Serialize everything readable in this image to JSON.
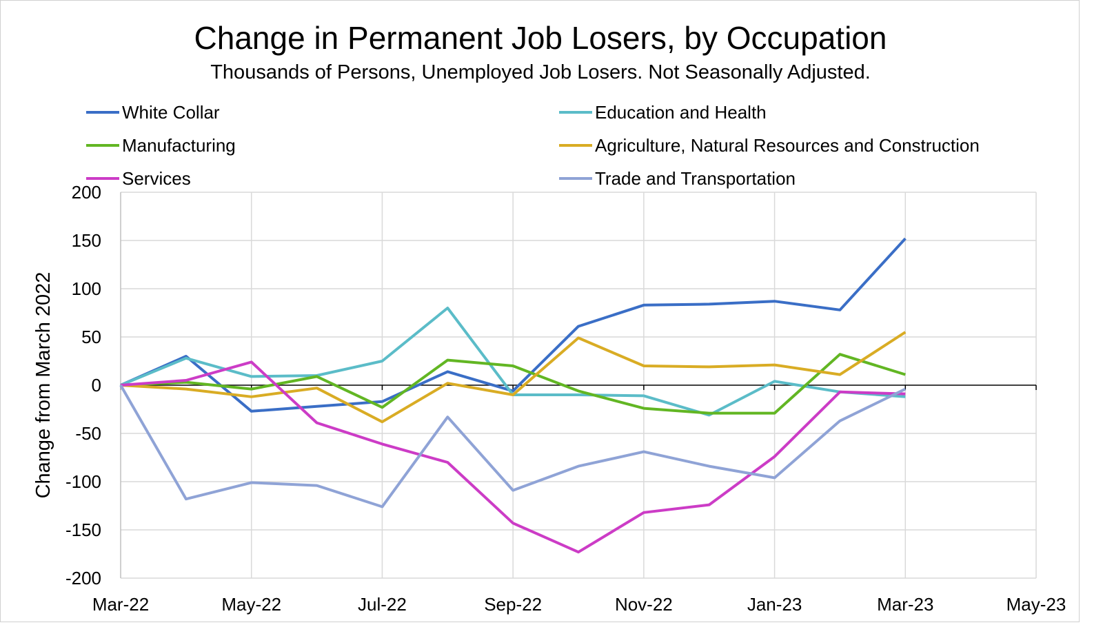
{
  "chart_data": {
    "type": "line",
    "title": "Change in Permanent Job Losers, by Occupation",
    "subtitle": "Thousands of Persons, Unemployed Job Losers. Not Seasonally Adjusted.",
    "xlabel": "",
    "ylabel": "Change from March 2022",
    "ylim": [
      -200,
      200
    ],
    "yticks": [
      "200",
      "150",
      "100",
      "50",
      "0",
      "-50",
      "-100",
      "-150",
      "-200"
    ],
    "xticks": [
      "Mar-22",
      "May-22",
      "Jul-22",
      "Sep-22",
      "Nov-22",
      "Jan-23",
      "Mar-23",
      "May-23"
    ],
    "x": [
      "Mar-22",
      "Apr-22",
      "May-22",
      "Jun-22",
      "Jul-22",
      "Aug-22",
      "Sep-22",
      "Oct-22",
      "Nov-22",
      "Dec-22",
      "Jan-23",
      "Feb-23",
      "Mar-23"
    ],
    "xlim": [
      "Mar-22",
      "May-23"
    ],
    "grid": true,
    "legend": "top",
    "series": [
      {
        "name": "White Collar",
        "color": "#3a6ec6",
        "values": [
          0,
          30,
          -27,
          -22,
          -17,
          14,
          -6,
          61,
          83,
          84,
          87,
          78,
          152
        ]
      },
      {
        "name": "Education and Health",
        "color": "#5bbcc8",
        "values": [
          0,
          28,
          9,
          10,
          25,
          80,
          -10,
          -10,
          -11,
          -31,
          4,
          -7,
          -12
        ]
      },
      {
        "name": "Manufacturing",
        "color": "#62b623",
        "values": [
          0,
          3,
          -4,
          9,
          -23,
          26,
          20,
          -6,
          -24,
          -29,
          -29,
          32,
          11
        ]
      },
      {
        "name": "Agriculture, Natural Resources and Construction",
        "color": "#d9ac24",
        "values": [
          0,
          -4,
          -12,
          -3,
          -38,
          2,
          -10,
          49,
          20,
          19,
          21,
          11,
          55
        ]
      },
      {
        "name": "Services",
        "color": "#cc3cc6",
        "values": [
          0,
          5,
          24,
          -39,
          -61,
          -80,
          -143,
          -173,
          -132,
          -124,
          -74,
          -7,
          -9
        ]
      },
      {
        "name": "Trade and Transportation",
        "color": "#8fa3d6",
        "values": [
          0,
          -118,
          -101,
          -104,
          -126,
          -33,
          -109,
          -84,
          -69,
          -84,
          -96,
          -37,
          -4
        ]
      }
    ]
  }
}
